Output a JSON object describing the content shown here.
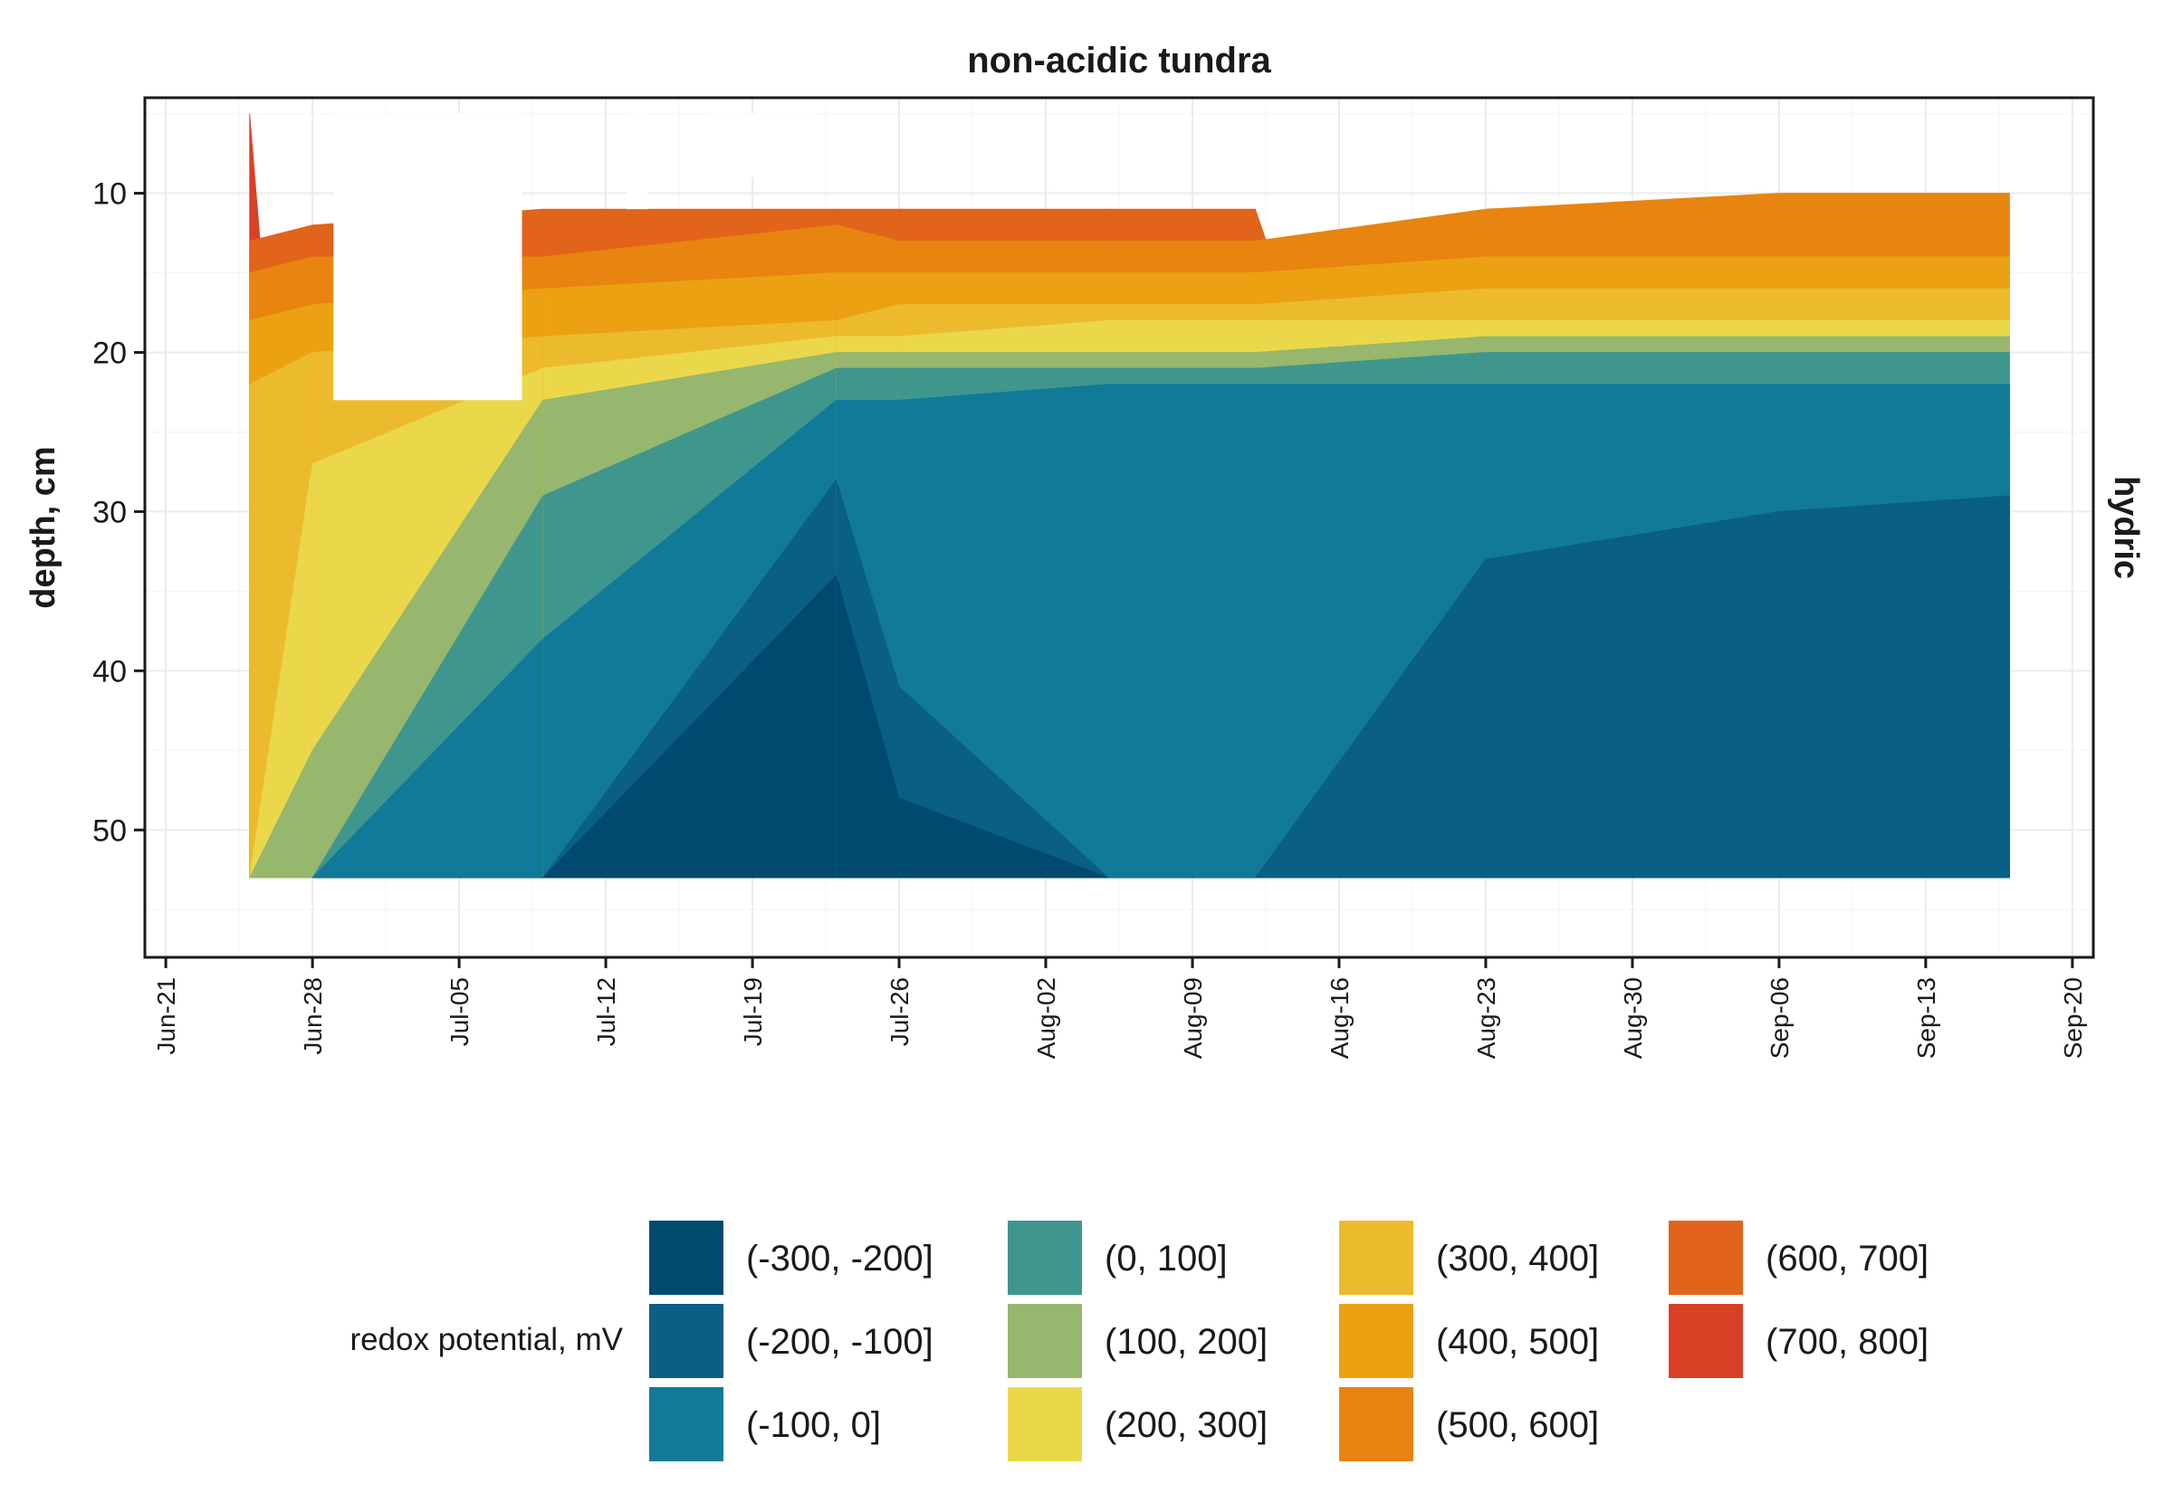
{
  "chart_data": {
    "type": "heatmap",
    "title": "non-acidic tundra",
    "ylabel": "depth, cm",
    "xlabel": "",
    "facet_label": "hydric",
    "y_reversed": true,
    "ylim": [
      4,
      58
    ],
    "yticks": [
      10,
      20,
      30,
      40,
      50
    ],
    "x_range": [
      "2024-06-20",
      "2024-09-21"
    ],
    "xticks": [
      "Jun-21",
      "Jun-28",
      "Jul-05",
      "Jul-12",
      "Jul-19",
      "Jul-26",
      "Aug-02",
      "Aug-09",
      "Aug-16",
      "Aug-23",
      "Aug-30",
      "Sep-06",
      "Sep-13",
      "Sep-20"
    ],
    "grid": true,
    "legend": {
      "title": "redox potential, mV",
      "placement": "bottom",
      "bins": [
        {
          "label": "(-300, -200]",
          "color": "#004a70"
        },
        {
          "label": "(-200, -100]",
          "color": "#0a5f84"
        },
        {
          "label": "(-100, 0]",
          "color": "#117a99"
        },
        {
          "label": "(0, 100]",
          "color": "#3f968d"
        },
        {
          "label": "(100, 200]",
          "color": "#96b76d"
        },
        {
          "label": "(200, 300]",
          "color": "#ebd84a"
        },
        {
          "label": "(300, 400]",
          "color": "#ecbb2d"
        },
        {
          "label": "(400, 500]",
          "color": "#eca112"
        },
        {
          "label": "(500, 600]",
          "color": "#e88410"
        },
        {
          "label": "(600, 700]",
          "color": "#e2631a"
        },
        {
          "label": "(700, 800]",
          "color": "#d94127"
        }
      ]
    },
    "data_extent": {
      "x": [
        "2024-06-25",
        "2024-09-17"
      ],
      "y": [
        5,
        53
      ]
    },
    "profiles": [
      {
        "date": "2024-06-25",
        "boundaries": [
          [
            700,
            5
          ],
          [
            600,
            13
          ],
          [
            500,
            15
          ],
          [
            400,
            18
          ],
          [
            300,
            22
          ]
        ]
      },
      {
        "date": "2024-06-28",
        "boundaries": [
          [
            600,
            12
          ],
          [
            500,
            14
          ],
          [
            400,
            17
          ],
          [
            300,
            20
          ],
          [
            200,
            27
          ],
          [
            100,
            45
          ]
        ]
      },
      {
        "date": "2024-07-09",
        "boundaries": [
          [
            600,
            11
          ],
          [
            500,
            14
          ],
          [
            400,
            16
          ],
          [
            300,
            19
          ],
          [
            200,
            21
          ],
          [
            100,
            23
          ],
          [
            0,
            29
          ],
          [
            -100,
            38
          ],
          [
            -200,
            54
          ]
        ]
      },
      {
        "date": "2024-07-23",
        "boundaries": [
          [
            600,
            11
          ],
          [
            500,
            12
          ],
          [
            400,
            15
          ],
          [
            300,
            18
          ],
          [
            200,
            19
          ],
          [
            100,
            20
          ],
          [
            0,
            21
          ],
          [
            -100,
            23
          ],
          [
            -200,
            28
          ],
          [
            -300,
            34
          ]
        ]
      },
      {
        "date": "2024-07-26",
        "boundaries": [
          [
            600,
            11
          ],
          [
            500,
            13
          ],
          [
            400,
            15
          ],
          [
            300,
            17
          ],
          [
            200,
            19
          ],
          [
            100,
            20
          ],
          [
            0,
            21
          ],
          [
            -100,
            23
          ],
          [
            -200,
            41
          ],
          [
            -300,
            48
          ]
        ]
      },
      {
        "date": "2024-08-05",
        "boundaries": [
          [
            600,
            11
          ],
          [
            500,
            13
          ],
          [
            400,
            15
          ],
          [
            300,
            17
          ],
          [
            200,
            18
          ],
          [
            100,
            20
          ],
          [
            0,
            21
          ],
          [
            -100,
            22
          ],
          [
            -200,
            53
          ]
        ]
      },
      {
        "date": "2024-08-12",
        "boundaries": [
          [
            600,
            11
          ],
          [
            500,
            13
          ],
          [
            400,
            15
          ],
          [
            300,
            17
          ],
          [
            200,
            18
          ],
          [
            100,
            20
          ],
          [
            0,
            21
          ],
          [
            -100,
            22
          ]
        ]
      },
      {
        "date": "2024-08-23",
        "boundaries": [
          [
            500,
            11
          ],
          [
            400,
            14
          ],
          [
            300,
            16
          ],
          [
            200,
            18
          ],
          [
            100,
            19
          ],
          [
            0,
            20
          ],
          [
            -100,
            22
          ],
          [
            -200,
            33
          ]
        ]
      },
      {
        "date": "2024-09-06",
        "boundaries": [
          [
            500,
            10
          ],
          [
            400,
            14
          ],
          [
            300,
            16
          ],
          [
            200,
            18
          ],
          [
            100,
            19
          ],
          [
            0,
            20
          ],
          [
            -100,
            22
          ],
          [
            -200,
            30
          ]
        ]
      },
      {
        "date": "2024-09-17",
        "boundaries": [
          [
            500,
            10
          ],
          [
            400,
            14
          ],
          [
            300,
            16
          ],
          [
            200,
            18
          ],
          [
            100,
            19
          ],
          [
            0,
            20
          ],
          [
            -100,
            22
          ],
          [
            -200,
            29
          ]
        ]
      }
    ],
    "missing_data": [
      {
        "from": "2024-06-29",
        "to": "2024-07-08",
        "depth": [
          5,
          23
        ]
      },
      {
        "from": "2024-07-13",
        "to": "2024-07-14",
        "depth": [
          5,
          11
        ]
      },
      {
        "from": "2024-07-17",
        "to": "2024-07-22",
        "depth": [
          5,
          9
        ]
      }
    ]
  }
}
